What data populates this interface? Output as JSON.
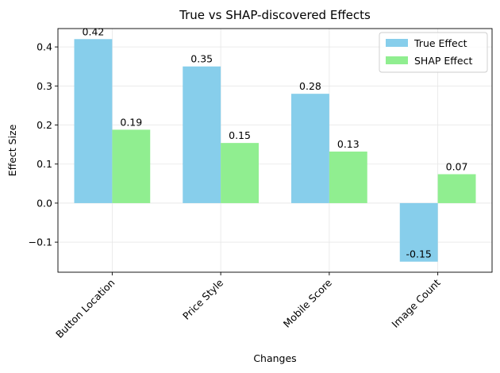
{
  "chart_data": {
    "type": "bar",
    "title": "True vs SHAP-discovered Effects",
    "xlabel": "Changes",
    "ylabel": "Effect Size",
    "categories": [
      "Button Location",
      "Price Style",
      "Mobile Score",
      "Image Count"
    ],
    "series": [
      {
        "name": "True Effect",
        "color": "#87ceeb",
        "values": [
          0.42,
          0.35,
          0.28,
          -0.15
        ],
        "labels": [
          "0.42",
          "0.35",
          "0.28",
          "-0.15"
        ]
      },
      {
        "name": "SHAP Effect",
        "color": "#90ee90",
        "values": [
          0.188,
          0.154,
          0.132,
          0.074
        ],
        "labels": [
          "0.19",
          "0.15",
          "0.13",
          "0.07"
        ]
      }
    ],
    "ylim": [
      -0.177,
      0.447
    ],
    "yticks": [
      -0.1,
      0.0,
      0.1,
      0.2,
      0.3,
      0.4
    ],
    "ytick_labels": [
      "−0.1",
      "0.0",
      "0.1",
      "0.2",
      "0.3",
      "0.4"
    ],
    "grid": true,
    "legend_position": "top-right"
  }
}
